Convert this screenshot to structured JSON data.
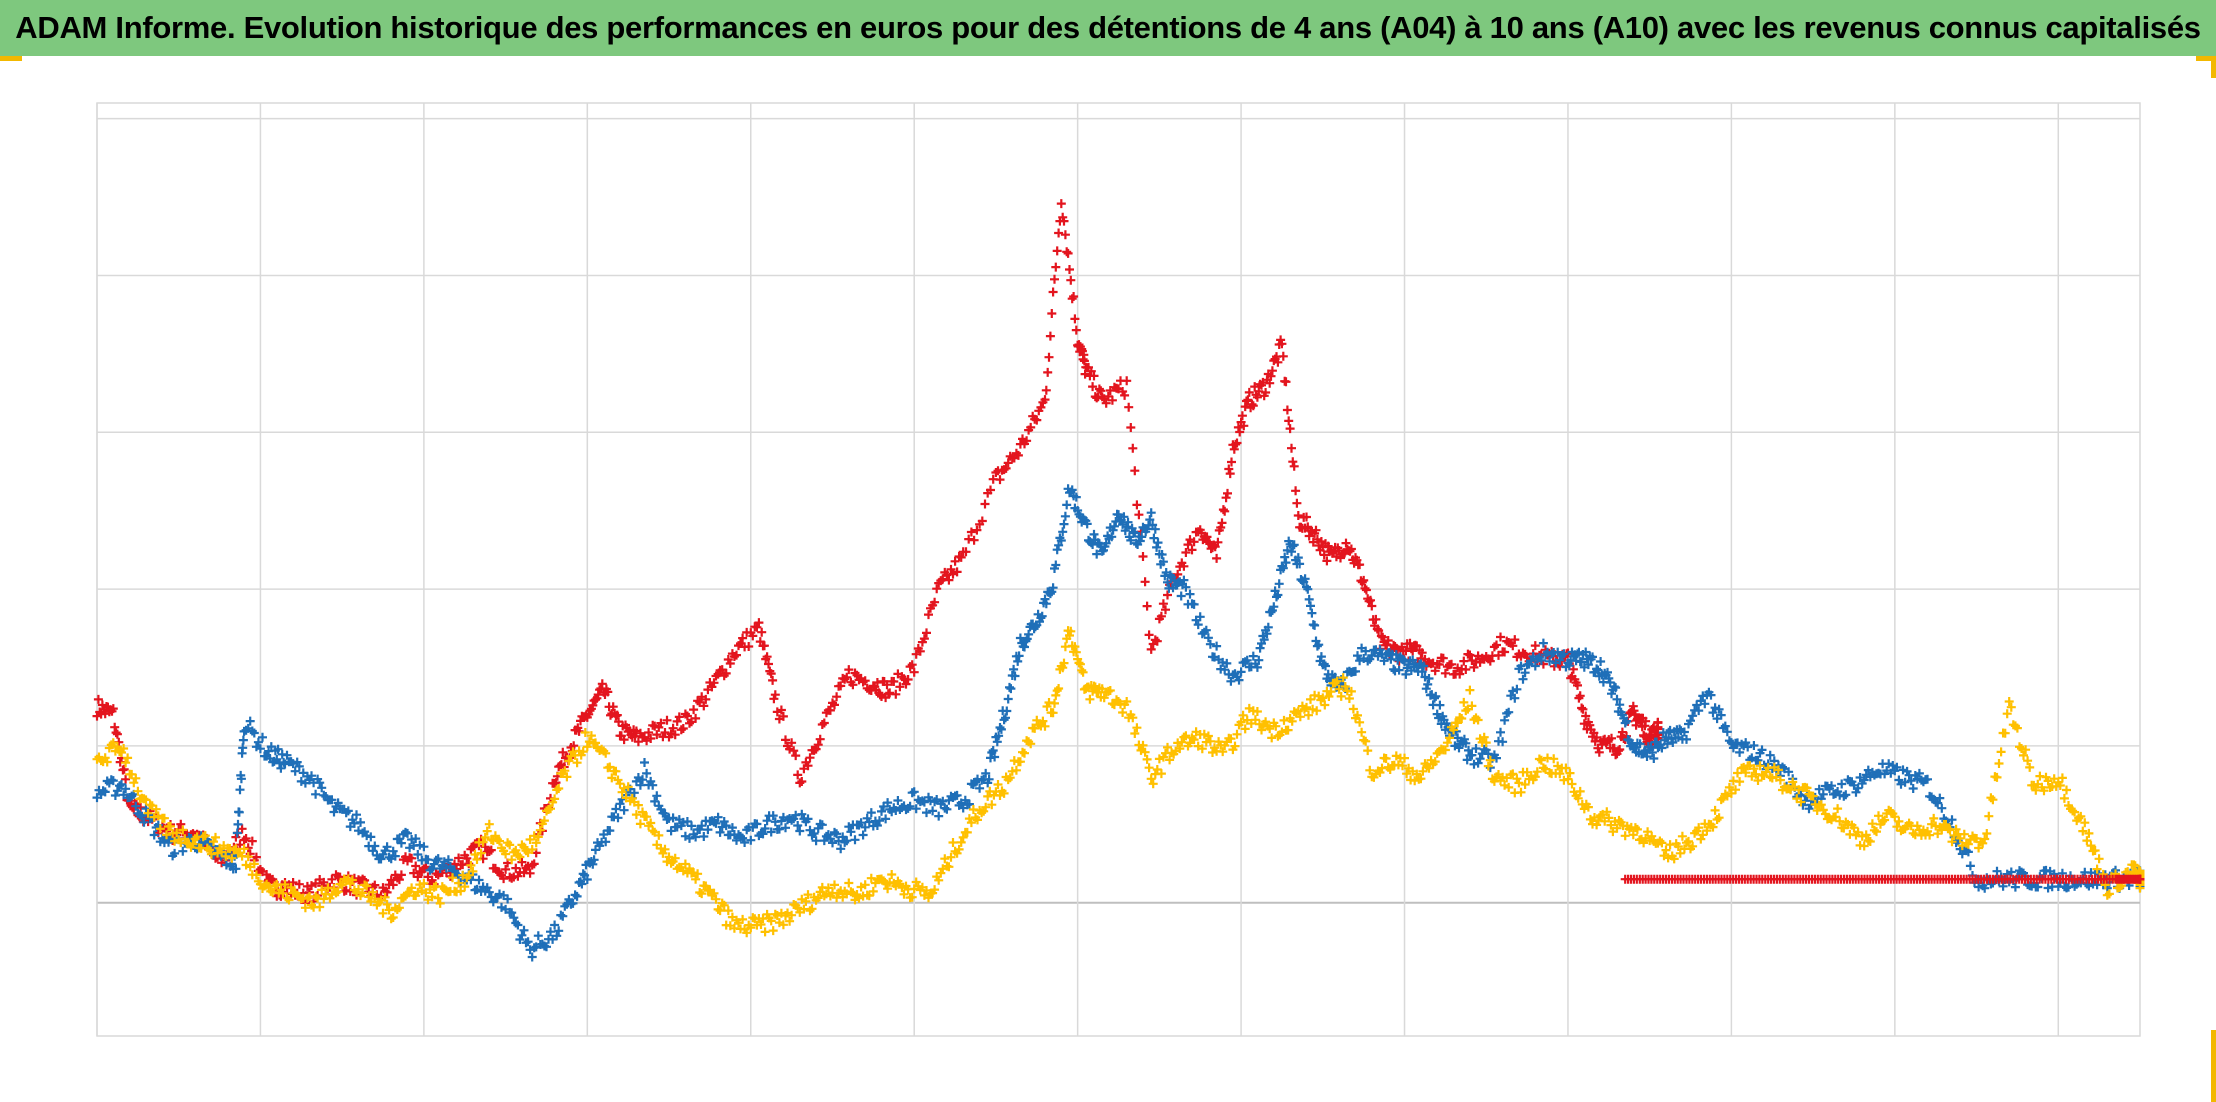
{
  "title": "ADAM Informe. Evolution historique des performances en euros pour des détentions de 4 ans (A04) à 10 ans (A10) avec les revenus connus capitalisés",
  "colors": {
    "title_background": "#7ec87e",
    "grid": "#d9d9d9",
    "zero_line": "#bfbfbf",
    "corner_accent": "#f2b800"
  },
  "chart_data": {
    "type": "scatter",
    "marker": "plus",
    "grid": true,
    "legend": "none",
    "xlabel": "",
    "ylabel": "",
    "x_ticks_printed": false,
    "y_ticks_printed": false,
    "xlim": [
      0,
      12.5
    ],
    "ylim": [
      -0.85,
      5.1
    ],
    "y_gridlines": [
      0,
      1,
      2,
      3,
      4,
      5
    ],
    "x_gridlines": [
      0,
      1,
      2,
      3,
      4,
      5,
      6,
      7,
      8,
      9,
      10,
      11,
      12
    ],
    "series": [
      {
        "color": "#e3151e",
        "x": [
          0.0,
          0.1,
          0.2,
          0.3,
          0.45,
          0.6,
          0.75,
          0.9,
          1.05,
          1.15,
          1.3,
          1.45,
          1.6,
          1.75,
          1.9,
          2.05,
          2.2,
          2.35,
          2.5,
          2.65,
          2.8,
          2.9,
          3.0,
          3.1,
          3.2,
          3.3,
          3.45,
          3.6,
          3.75,
          3.9,
          4.05,
          4.15,
          4.3,
          4.45,
          4.6,
          4.75,
          4.85,
          5.0,
          5.15,
          5.3,
          5.5,
          5.65,
          5.8,
          5.9,
          6.0,
          6.05,
          6.15,
          6.3,
          6.45,
          6.6,
          6.75,
          6.85,
          6.95,
          7.05,
          7.15,
          7.25,
          7.35,
          7.45,
          7.55,
          7.65,
          7.75,
          7.85,
          7.95,
          8.05,
          8.15,
          8.3,
          8.45,
          8.6,
          8.75,
          8.9,
          9.0,
          9.1,
          9.2,
          9.3,
          9.4,
          9.45,
          9.5,
          9.55
        ],
        "y": [
          1.25,
          1.2,
          0.6,
          0.55,
          0.45,
          0.45,
          0.25,
          0.45,
          0.1,
          0.1,
          0.05,
          0.15,
          0.1,
          0.05,
          0.25,
          0.15,
          0.25,
          0.35,
          0.2,
          0.2,
          0.8,
          1.0,
          1.2,
          1.35,
          1.1,
          1.05,
          1.1,
          1.15,
          1.35,
          1.6,
          1.75,
          1.3,
          0.8,
          1.15,
          1.45,
          1.4,
          1.35,
          1.5,
          2.0,
          2.2,
          2.7,
          2.9,
          3.2,
          4.5,
          3.6,
          3.4,
          3.2,
          3.3,
          1.6,
          2.1,
          2.4,
          2.2,
          2.9,
          3.2,
          3.3,
          3.55,
          2.45,
          2.35,
          2.2,
          2.3,
          2.05,
          1.65,
          1.6,
          1.6,
          1.55,
          1.5,
          1.55,
          1.65,
          1.6,
          1.55,
          1.55,
          1.2,
          1.0,
          1.0,
          1.2,
          1.15,
          1.05,
          1.1
        ]
      },
      {
        "color": "#1f6fb8",
        "x": [
          0.0,
          0.15,
          0.3,
          0.45,
          0.6,
          0.75,
          0.85,
          0.9,
          1.05,
          1.15,
          1.3,
          1.45,
          1.6,
          1.75,
          1.9,
          2.05,
          2.2,
          2.35,
          2.5,
          2.65,
          2.8,
          2.95,
          3.05,
          3.2,
          3.35,
          3.5,
          3.65,
          3.8,
          3.95,
          4.1,
          4.25,
          4.4,
          4.55,
          4.7,
          4.85,
          5.0,
          5.15,
          5.3,
          5.45,
          5.55,
          5.65,
          5.75,
          5.85,
          5.95,
          6.05,
          6.15,
          6.25,
          6.35,
          6.45,
          6.55,
          6.65,
          6.8,
          6.95,
          7.1,
          7.2,
          7.3,
          7.4,
          7.5,
          7.6,
          7.75,
          7.9,
          8.0,
          8.1,
          8.2,
          8.3,
          8.4,
          8.55,
          8.7,
          8.85,
          9.0,
          9.1,
          9.2,
          9.3,
          9.4,
          9.5,
          9.6,
          9.7,
          9.85,
          10.0,
          10.15,
          10.3,
          10.45,
          10.6,
          10.75,
          10.9,
          11.05,
          11.2,
          11.35,
          11.5,
          11.65,
          11.8,
          11.95,
          12.1,
          12.25,
          12.4,
          12.5
        ],
        "y": [
          0.7,
          0.75,
          0.55,
          0.35,
          0.4,
          0.3,
          0.25,
          1.15,
          0.95,
          0.9,
          0.8,
          0.6,
          0.5,
          0.3,
          0.4,
          0.25,
          0.2,
          0.1,
          0.0,
          -0.3,
          -0.2,
          0.1,
          0.3,
          0.6,
          0.85,
          0.5,
          0.45,
          0.5,
          0.4,
          0.5,
          0.55,
          0.45,
          0.4,
          0.5,
          0.6,
          0.65,
          0.6,
          0.65,
          0.8,
          1.2,
          1.65,
          1.8,
          2.05,
          2.65,
          2.4,
          2.2,
          2.5,
          2.3,
          2.45,
          2.05,
          2.0,
          1.65,
          1.45,
          1.55,
          1.9,
          2.3,
          2.0,
          1.5,
          1.35,
          1.6,
          1.55,
          1.5,
          1.5,
          1.25,
          1.05,
          0.95,
          0.9,
          1.45,
          1.6,
          1.55,
          1.55,
          1.5,
          1.3,
          1.0,
          0.95,
          1.05,
          1.05,
          1.35,
          1.0,
          0.95,
          0.85,
          0.65,
          0.7,
          0.75,
          0.85,
          0.8,
          0.75,
          0.5,
          0.15,
          0.15,
          0.15,
          0.15,
          0.15,
          0.15,
          0.15,
          0.15
        ]
      },
      {
        "color": "#ffc000",
        "x": [
          0.0,
          0.15,
          0.3,
          0.45,
          0.6,
          0.75,
          0.9,
          1.05,
          1.2,
          1.35,
          1.5,
          1.65,
          1.8,
          1.95,
          2.1,
          2.25,
          2.4,
          2.55,
          2.7,
          2.85,
          3.0,
          3.15,
          3.3,
          3.45,
          3.6,
          3.75,
          3.9,
          4.05,
          4.2,
          4.35,
          4.5,
          4.65,
          4.8,
          4.95,
          5.1,
          5.25,
          5.4,
          5.55,
          5.7,
          5.85,
          5.95,
          6.05,
          6.15,
          6.3,
          6.45,
          6.6,
          6.75,
          6.9,
          7.05,
          7.2,
          7.35,
          7.5,
          7.65,
          7.8,
          7.95,
          8.1,
          8.25,
          8.4,
          8.55,
          8.7,
          8.85,
          9.0,
          9.15,
          9.3,
          9.45,
          9.6,
          9.75,
          9.9,
          10.05,
          10.2,
          10.35,
          10.5,
          10.65,
          10.8,
          10.95,
          11.1,
          11.25,
          11.4,
          11.55,
          11.7,
          11.85,
          12.0,
          12.15,
          12.3,
          12.45,
          12.5
        ],
        "y": [
          0.9,
          1.0,
          0.6,
          0.45,
          0.4,
          0.35,
          0.3,
          0.1,
          0.05,
          0.0,
          0.15,
          0.05,
          -0.05,
          0.1,
          0.05,
          0.15,
          0.45,
          0.3,
          0.4,
          0.8,
          1.05,
          0.85,
          0.6,
          0.35,
          0.2,
          0.05,
          -0.15,
          -0.15,
          -0.1,
          0.0,
          0.1,
          0.05,
          0.15,
          0.1,
          0.05,
          0.35,
          0.6,
          0.75,
          1.05,
          1.25,
          1.75,
          1.35,
          1.35,
          1.25,
          0.8,
          1.0,
          1.05,
          0.95,
          1.2,
          1.1,
          1.2,
          1.3,
          1.4,
          0.85,
          0.9,
          0.8,
          1.0,
          1.3,
          0.8,
          0.75,
          0.9,
          0.8,
          0.55,
          0.5,
          0.45,
          0.3,
          0.4,
          0.55,
          0.8,
          0.85,
          0.75,
          0.65,
          0.55,
          0.4,
          0.55,
          0.45,
          0.5,
          0.4,
          0.4,
          1.25,
          0.75,
          0.8,
          0.5,
          0.1,
          0.2,
          0.15
        ]
      },
      {
        "color": "#e3151e",
        "x": [
          9.35,
          9.6,
          9.85,
          10.1,
          10.35,
          10.6,
          10.85,
          11.1,
          11.35,
          11.6,
          11.85,
          12.1,
          12.35,
          12.5
        ],
        "y": [
          0.15,
          0.15,
          0.15,
          0.15,
          0.15,
          0.15,
          0.15,
          0.15,
          0.15,
          0.15,
          0.15,
          0.15,
          0.15,
          0.15
        ]
      }
    ]
  }
}
